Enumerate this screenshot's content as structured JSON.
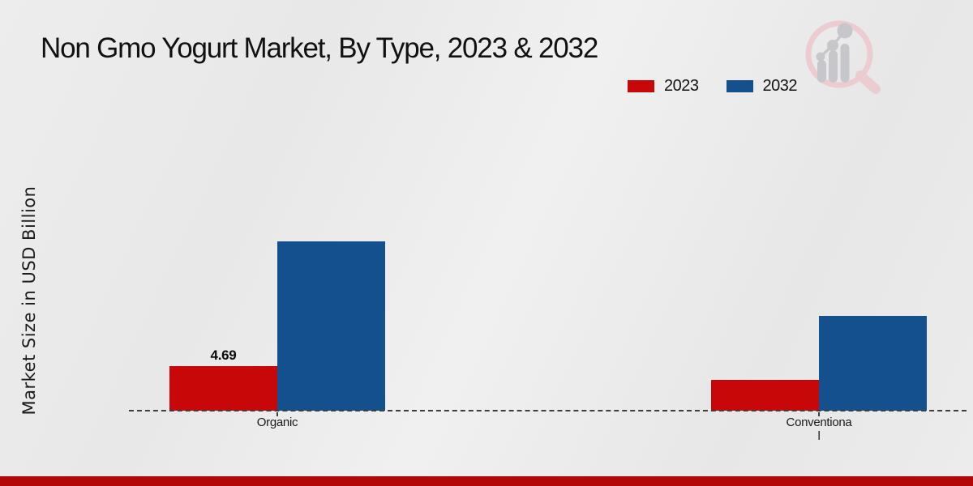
{
  "page": {
    "background_color": "#eaeaea",
    "footer_bar_color": "#b30707"
  },
  "chart": {
    "title": "Non Gmo Yogurt Market, By Type, 2023 & 2032"
  },
  "watermark": {
    "icon": "market-research-future-logo",
    "ring_color": "#ecccd1",
    "bars_color": "#c7c7cb"
  },
  "chart_data": {
    "type": "bar",
    "title": "Non Gmo Yogurt Market, By Type, 2023 & 2032",
    "xlabel": "",
    "ylabel": "Market Size in USD Billion",
    "categories": [
      "Organic",
      "Conventional"
    ],
    "category_display_lines": [
      [
        "Organic"
      ],
      [
        "Conventiona",
        "l"
      ]
    ],
    "series": [
      {
        "name": "2023",
        "color": "#c80808",
        "values": [
          4.69,
          3.2
        ],
        "value_labels": [
          "4.69",
          ""
        ]
      },
      {
        "name": "2032",
        "color": "#15508e",
        "values": [
          17.8,
          10.0
        ],
        "value_labels": [
          "",
          ""
        ]
      }
    ],
    "legend_position": "top-right",
    "grid": false,
    "y_axis_ticks_visible": false,
    "baseline_style": "dashed",
    "baseline_color": "#3f3f3f"
  }
}
